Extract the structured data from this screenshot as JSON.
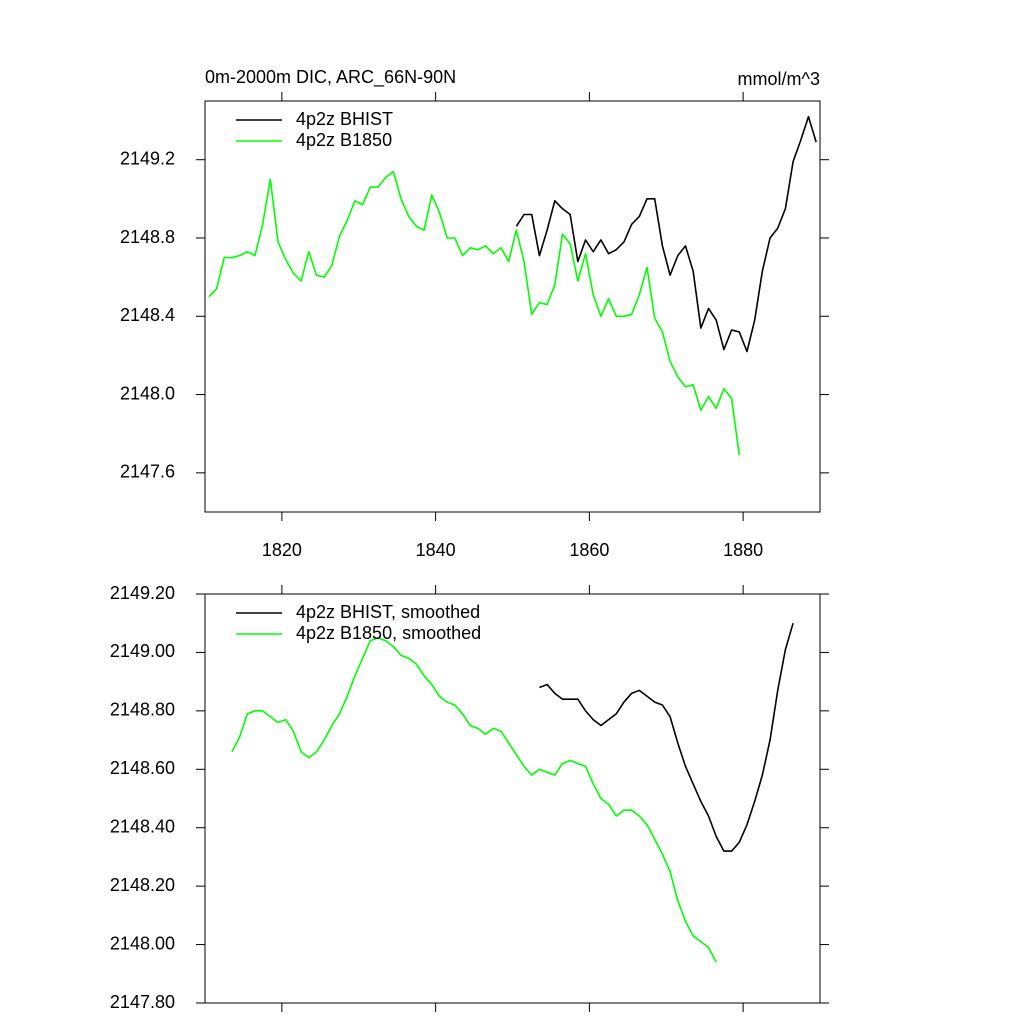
{
  "chart_data": [
    {
      "type": "line",
      "title": "0m-2000m DIC, ARC_66N-90N",
      "units": "mmol/m^3",
      "xlim": [
        1810,
        1890
      ],
      "xticks": [
        1820,
        1840,
        1860,
        1880
      ],
      "ylim": [
        2147.4,
        2149.5
      ],
      "yticks": [
        2149.2,
        2148.8,
        2148.4,
        {
          "value": 2148,
          "label": "2148.0"
        },
        2147.6
      ],
      "legend": "top-left",
      "series": [
        {
          "name": "4p2z BHIST",
          "color": "#000000",
          "x": [
            1850.5,
            1851.5,
            1852.5,
            1853.5,
            1854.5,
            1855.5,
            1856.5,
            1857.5,
            1858.5,
            1859.5,
            1860.5,
            1861.5,
            1862.5,
            1863.5,
            1864.5,
            1865.5,
            1866.5,
            1867.5,
            1868.5,
            1869.5,
            1870.5,
            1871.5,
            1872.5,
            1873.5,
            1874.5,
            1875.5,
            1876.5,
            1877.5,
            1878.5,
            1879.5,
            1880.5,
            1881.5,
            1882.5,
            1883.5,
            1884.5,
            1885.5,
            1886.5,
            1887.5,
            1888.5,
            1889.5
          ],
          "values": [
            2148.86,
            2148.92,
            2148.92,
            2148.71,
            2148.84,
            2148.99,
            2148.95,
            2148.92,
            2148.68,
            2148.79,
            2148.73,
            2148.79,
            2148.72,
            2148.74,
            2148.78,
            2148.87,
            2148.91,
            2149.0,
            2149.0,
            2148.76,
            2148.61,
            2148.71,
            2148.76,
            2148.63,
            2148.34,
            2148.44,
            2148.38,
            2148.23,
            2148.33,
            2148.32,
            2148.22,
            2148.38,
            2148.63,
            2148.8,
            2148.85,
            2148.95,
            2149.19,
            2149.3,
            2149.42,
            2149.29
          ]
        },
        {
          "name": "4p2z B1850",
          "color": "#00ff00",
          "x": [
            1810.5,
            1811.5,
            1812.5,
            1813.5,
            1814.5,
            1815.5,
            1816.5,
            1817.5,
            1818.5,
            1819.5,
            1820.5,
            1821.5,
            1822.5,
            1823.5,
            1824.5,
            1825.5,
            1826.5,
            1827.5,
            1828.5,
            1829.5,
            1830.5,
            1831.5,
            1832.5,
            1833.5,
            1834.5,
            1835.5,
            1836.5,
            1837.5,
            1838.5,
            1839.5,
            1840.5,
            1841.5,
            1842.5,
            1843.5,
            1844.5,
            1845.5,
            1846.5,
            1847.5,
            1848.5,
            1849.5,
            1850.5,
            1851.5,
            1852.5,
            1853.5,
            1854.5,
            1855.5,
            1856.5,
            1857.5,
            1858.5,
            1859.5,
            1860.5,
            1861.5,
            1862.5,
            1863.5,
            1864.5,
            1865.5,
            1866.5,
            1867.5,
            1868.5,
            1869.5,
            1870.5,
            1871.5,
            1872.5,
            1873.5,
            1874.5,
            1875.5,
            1876.5,
            1877.5,
            1878.5,
            1879.5
          ],
          "values": [
            2148.5,
            2148.54,
            2148.7,
            2148.7,
            2148.71,
            2148.73,
            2148.71,
            2148.87,
            2149.1,
            2148.78,
            2148.69,
            2148.62,
            2148.58,
            2148.73,
            2148.61,
            2148.6,
            2148.66,
            2148.81,
            2148.89,
            2148.99,
            2148.97,
            2149.06,
            2149.06,
            2149.11,
            2149.14,
            2149.0,
            2148.91,
            2148.86,
            2148.84,
            2149.02,
            2148.93,
            2148.8,
            2148.8,
            2148.71,
            2148.75,
            2148.74,
            2148.76,
            2148.72,
            2148.75,
            2148.68,
            2148.84,
            2148.68,
            2148.41,
            2148.47,
            2148.46,
            2148.56,
            2148.82,
            2148.77,
            2148.58,
            2148.72,
            2148.51,
            2148.4,
            2148.49,
            2148.4,
            2148.4,
            2148.41,
            2148.51,
            2148.65,
            2148.39,
            2148.32,
            2148.17,
            2148.09,
            2148.04,
            2148.05,
            2147.92,
            2147.99,
            2147.93,
            2148.03,
            2147.98,
            2147.69
          ]
        }
      ]
    },
    {
      "type": "line",
      "xlim": [
        1810,
        1890
      ],
      "xticks": [
        1820,
        1840,
        1860,
        1880
      ],
      "ylim": [
        2147.8,
        2149.2
      ],
      "yticks": [
        {
          "value": 2149.2,
          "label": "2149.20"
        },
        {
          "value": 2149,
          "label": "2149.00"
        },
        {
          "value": 2148.8,
          "label": "2148.80"
        },
        {
          "value": 2148.6,
          "label": "2148.60"
        },
        {
          "value": 2148.4,
          "label": "2148.40"
        },
        {
          "value": 2148.2,
          "label": "2148.20"
        },
        {
          "value": 2148,
          "label": "2148.00"
        },
        {
          "value": 2147.8,
          "label": "2147.80"
        }
      ],
      "legend": "top-left",
      "series": [
        {
          "name": "4p2z BHIST, smoothed",
          "color": "#000000",
          "x": [
            1853.5,
            1854.5,
            1855.5,
            1856.5,
            1857.5,
            1858.5,
            1859.5,
            1860.5,
            1861.5,
            1862.5,
            1863.5,
            1864.5,
            1865.5,
            1866.5,
            1867.5,
            1868.5,
            1869.5,
            1870.5,
            1871.5,
            1872.5,
            1873.5,
            1874.5,
            1875.5,
            1876.5,
            1877.5,
            1878.5,
            1879.5,
            1880.5,
            1881.5,
            1882.5,
            1883.5,
            1884.5,
            1885.5,
            1886.5
          ],
          "values": [
            2148.88,
            2148.89,
            2148.86,
            2148.84,
            2148.84,
            2148.84,
            2148.8,
            2148.77,
            2148.75,
            2148.77,
            2148.79,
            2148.83,
            2148.86,
            2148.87,
            2148.85,
            2148.83,
            2148.82,
            2148.78,
            2148.69,
            2148.61,
            2148.55,
            2148.49,
            2148.44,
            2148.37,
            2148.32,
            2148.32,
            2148.35,
            2148.41,
            2148.49,
            2148.58,
            2148.7,
            2148.87,
            2149.01,
            2149.1
          ]
        },
        {
          "name": "4p2z B1850, smoothed",
          "color": "#00ff00",
          "x": [
            1813.5,
            1814.5,
            1815.5,
            1816.5,
            1817.5,
            1818.5,
            1819.5,
            1820.5,
            1821.5,
            1822.5,
            1823.5,
            1824.5,
            1825.5,
            1826.5,
            1827.5,
            1828.5,
            1829.5,
            1830.5,
            1831.5,
            1832.5,
            1833.5,
            1834.5,
            1835.5,
            1836.5,
            1837.5,
            1838.5,
            1839.5,
            1840.5,
            1841.5,
            1842.5,
            1843.5,
            1844.5,
            1845.5,
            1846.5,
            1847.5,
            1848.5,
            1849.5,
            1850.5,
            1851.5,
            1852.5,
            1853.5,
            1854.5,
            1855.5,
            1856.5,
            1857.5,
            1858.5,
            1859.5,
            1860.5,
            1861.5,
            1862.5,
            1863.5,
            1864.5,
            1865.5,
            1866.5,
            1867.5,
            1868.5,
            1869.5,
            1870.5,
            1871.5,
            1872.5,
            1873.5,
            1874.5,
            1875.5,
            1876.5
          ],
          "values": [
            2148.66,
            2148.71,
            2148.79,
            2148.8,
            2148.8,
            2148.78,
            2148.76,
            2148.77,
            2148.73,
            2148.66,
            2148.64,
            2148.66,
            2148.7,
            2148.75,
            2148.79,
            2148.85,
            2148.92,
            2148.98,
            2149.04,
            2149.05,
            2149.04,
            2149.02,
            2148.99,
            2148.98,
            2148.96,
            2148.92,
            2148.89,
            2148.85,
            2148.83,
            2148.82,
            2148.79,
            2148.75,
            2148.74,
            2148.72,
            2148.74,
            2148.73,
            2148.69,
            2148.65,
            2148.61,
            2148.58,
            2148.6,
            2148.59,
            2148.58,
            2148.62,
            2148.63,
            2148.62,
            2148.61,
            2148.55,
            2148.5,
            2148.48,
            2148.44,
            2148.46,
            2148.46,
            2148.44,
            2148.41,
            2148.36,
            2148.31,
            2148.25,
            2148.15,
            2148.08,
            2148.03,
            2148.01,
            2147.99,
            2147.94
          ]
        }
      ]
    }
  ]
}
